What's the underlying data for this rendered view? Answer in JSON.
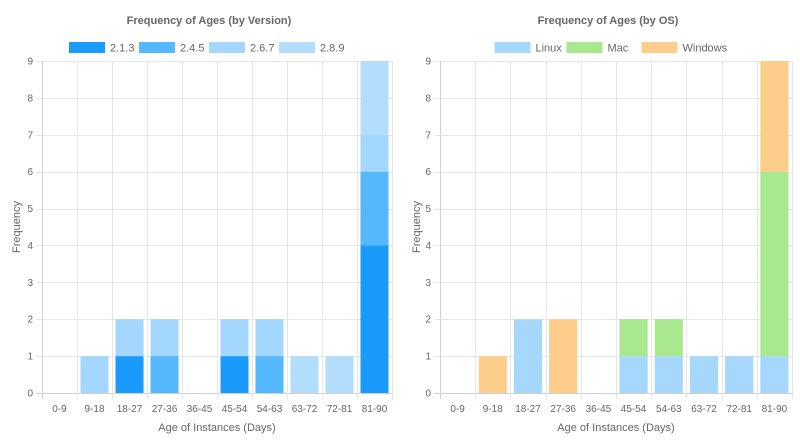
{
  "chart_data": [
    {
      "type": "bar",
      "stacked": true,
      "title": "Frequency of Ages (by Version)",
      "xlabel": "Age of Instances (Days)",
      "ylabel": "Frequency",
      "ylim": [
        0,
        9
      ],
      "yticks": [
        0,
        1,
        2,
        3,
        4,
        5,
        6,
        7,
        8,
        9
      ],
      "categories": [
        "0-9",
        "9-18",
        "18-27",
        "27-36",
        "36-45",
        "45-54",
        "54-63",
        "63-72",
        "72-81",
        "81-90"
      ],
      "legend_position": "top",
      "grid": true,
      "series": [
        {
          "name": "2.1.3",
          "color": "#1a9bfc",
          "values": [
            0,
            0,
            1,
            0,
            0,
            1,
            0,
            0,
            0,
            4
          ]
        },
        {
          "name": "2.4.5",
          "color": "#55b7fc",
          "values": [
            0,
            0,
            0,
            1,
            0,
            0,
            1,
            0,
            0,
            2
          ]
        },
        {
          "name": "2.6.7",
          "color": "#a4d7fd",
          "values": [
            0,
            1,
            1,
            1,
            0,
            1,
            1,
            0,
            0,
            1
          ]
        },
        {
          "name": "2.8.9",
          "color": "#b3ddfd",
          "values": [
            0,
            0,
            0,
            0,
            0,
            0,
            0,
            1,
            1,
            2
          ]
        }
      ]
    },
    {
      "type": "bar",
      "stacked": true,
      "title": "Frequency of Ages (by OS)",
      "xlabel": "Age of Instances (Days)",
      "ylabel": "Frequency",
      "ylim": [
        0,
        9
      ],
      "yticks": [
        0,
        1,
        2,
        3,
        4,
        5,
        6,
        7,
        8,
        9
      ],
      "categories": [
        "0-9",
        "9-18",
        "18-27",
        "27-36",
        "36-45",
        "45-54",
        "54-63",
        "63-72",
        "72-81",
        "81-90"
      ],
      "legend_position": "top",
      "grid": true,
      "series": [
        {
          "name": "Linux",
          "color": "#a6d8fd",
          "values": [
            0,
            0,
            2,
            0,
            0,
            1,
            1,
            1,
            1,
            1
          ]
        },
        {
          "name": "Mac",
          "color": "#a8e98f",
          "values": [
            0,
            0,
            0,
            0,
            0,
            1,
            1,
            0,
            0,
            5
          ]
        },
        {
          "name": "Windows",
          "color": "#fdcd8b",
          "values": [
            0,
            1,
            0,
            2,
            0,
            0,
            0,
            0,
            0,
            3
          ]
        }
      ]
    }
  ]
}
